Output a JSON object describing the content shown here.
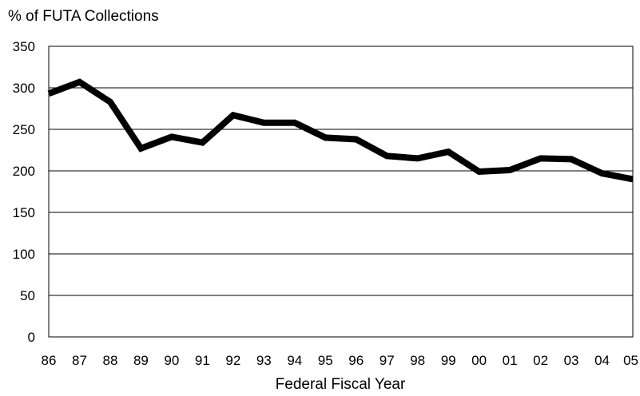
{
  "chart_data": {
    "type": "line",
    "title": "",
    "ylabel": "% of FUTA Collections",
    "xlabel": "Federal Fiscal Year",
    "categories": [
      "86",
      "87",
      "88",
      "89",
      "90",
      "91",
      "92",
      "93",
      "94",
      "95",
      "96",
      "97",
      "98",
      "99",
      "00",
      "01",
      "02",
      "03",
      "04",
      "05"
    ],
    "series": [
      {
        "values": [
          293,
          307,
          283,
          227,
          241,
          234,
          267,
          258,
          258,
          240,
          238,
          218,
          215,
          223,
          199,
          201,
          215,
          214,
          197,
          190
        ]
      }
    ],
    "ylim": [
      0,
      350
    ],
    "yticks": [
      0,
      50,
      100,
      150,
      200,
      250,
      300,
      350
    ],
    "grid": true,
    "line_color": "#000000"
  }
}
